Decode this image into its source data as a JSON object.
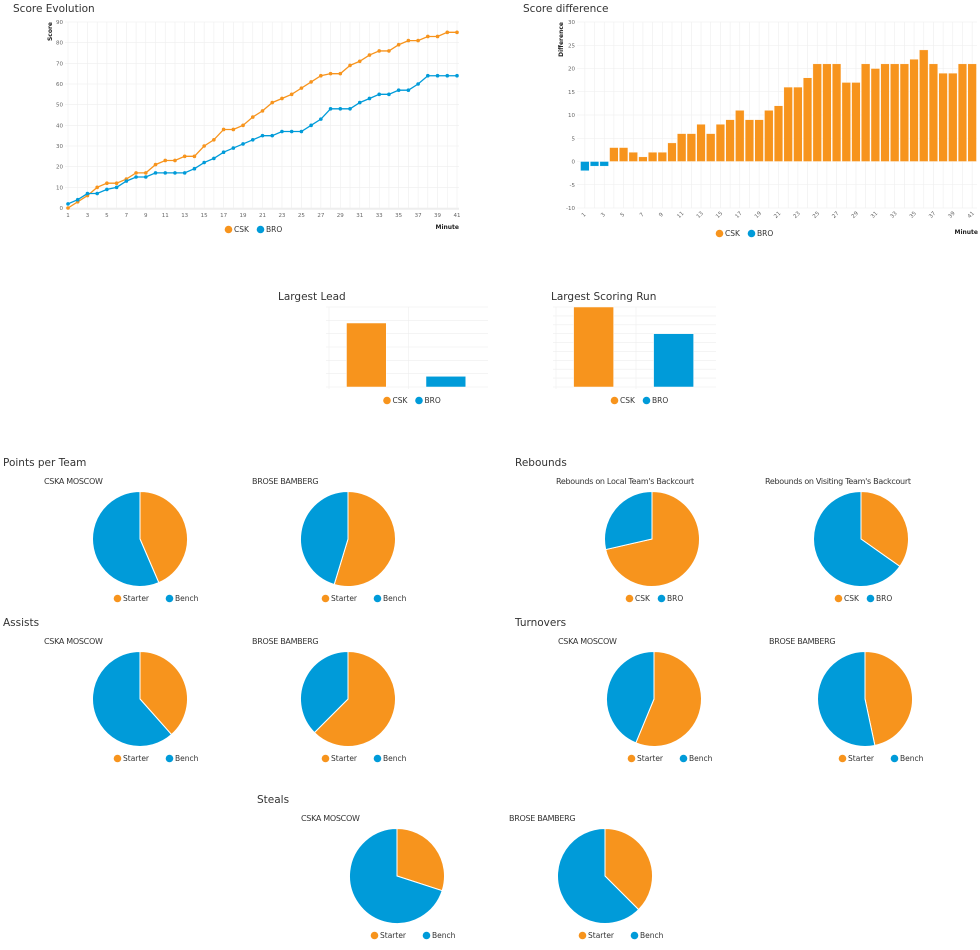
{
  "colors": {
    "orange": "#f7941d",
    "blue": "#009bd9",
    "grid": "#eeeeee"
  },
  "sections": {
    "points": "Points per Team",
    "rebounds": "Rebounds",
    "assists": "Assists",
    "turnovers": "Turnovers",
    "steals": "Steals"
  },
  "chart_data": [
    {
      "id": "score-evolution",
      "type": "line",
      "title": "Score Evolution",
      "xlabel": "Minute",
      "ylabel": "Score",
      "ylim": [
        0,
        90
      ],
      "yticks": [
        0,
        10,
        20,
        30,
        40,
        50,
        60,
        70,
        80,
        90
      ],
      "xticks": [
        1,
        3,
        5,
        7,
        9,
        11,
        13,
        15,
        17,
        19,
        21,
        23,
        25,
        27,
        29,
        31,
        33,
        35,
        37,
        39,
        41
      ],
      "grid": true,
      "legend": "bottom",
      "x": [
        1,
        2,
        3,
        4,
        5,
        6,
        7,
        8,
        9,
        10,
        11,
        12,
        13,
        14,
        15,
        16,
        17,
        18,
        19,
        20,
        21,
        22,
        23,
        24,
        25,
        26,
        27,
        28,
        29,
        30,
        31,
        32,
        33,
        34,
        35,
        36,
        37,
        38,
        39,
        40,
        41
      ],
      "series": [
        {
          "name": "CSK",
          "color": "#f7941d",
          "values": [
            0,
            3,
            6,
            10,
            12,
            12,
            14,
            17,
            17,
            21,
            23,
            23,
            25,
            25,
            30,
            33,
            38,
            38,
            40,
            44,
            47,
            51,
            53,
            55,
            58,
            61,
            64,
            65,
            65,
            69,
            71,
            74,
            76,
            76,
            79,
            81,
            81,
            83,
            83,
            85,
            85
          ]
        },
        {
          "name": "BRO",
          "color": "#009bd9",
          "values": [
            2,
            4,
            7,
            7,
            9,
            10,
            13,
            15,
            15,
            17,
            17,
            17,
            17,
            19,
            22,
            24,
            27,
            29,
            31,
            33,
            35,
            35,
            37,
            37,
            37,
            40,
            43,
            48,
            48,
            48,
            51,
            53,
            55,
            55,
            57,
            57,
            60,
            64,
            64,
            64,
            64
          ]
        }
      ]
    },
    {
      "id": "score-difference",
      "type": "bar",
      "title": "Score difference",
      "xlabel": "Minute",
      "ylabel": "Difference",
      "ylim": [
        -10,
        30
      ],
      "yticks": [
        -10,
        -5,
        0,
        5,
        10,
        15,
        20,
        25,
        30
      ],
      "xticks": [
        1,
        3,
        5,
        7,
        9,
        11,
        13,
        15,
        17,
        19,
        21,
        23,
        25,
        27,
        29,
        31,
        33,
        35,
        37,
        39,
        41
      ],
      "grid": true,
      "legend": "bottom",
      "legend_entries": [
        {
          "name": "CSK",
          "color": "#f7941d"
        },
        {
          "name": "BRO",
          "color": "#009bd9"
        }
      ],
      "x": [
        1,
        2,
        3,
        4,
        5,
        6,
        7,
        8,
        9,
        10,
        11,
        12,
        13,
        14,
        15,
        16,
        17,
        18,
        19,
        20,
        21,
        22,
        23,
        24,
        25,
        26,
        27,
        28,
        29,
        30,
        31,
        32,
        33,
        34,
        35,
        36,
        37,
        38,
        39,
        40,
        41
      ],
      "values": [
        -2,
        -1,
        -1,
        3,
        3,
        2,
        1,
        2,
        2,
        4,
        6,
        6,
        8,
        6,
        8,
        9,
        11,
        9,
        9,
        11,
        12,
        16,
        16,
        18,
        21,
        21,
        21,
        17,
        17,
        21,
        20,
        21,
        21,
        21,
        22,
        24,
        21,
        19,
        19,
        21,
        21
      ]
    },
    {
      "id": "largest-lead",
      "type": "bar",
      "title": "Largest Lead",
      "ylim": [
        0,
        30
      ],
      "grid": true,
      "legend": "bottom",
      "categories": [
        "CSK",
        "BRO"
      ],
      "colors": [
        "#f7941d",
        "#009bd9"
      ],
      "values": [
        24,
        4
      ]
    },
    {
      "id": "largest-scoring-run",
      "type": "bar",
      "title": "Largest Scoring Run",
      "ylim": [
        0,
        9
      ],
      "grid": true,
      "legend": "bottom",
      "categories": [
        "CSK",
        "BRO"
      ],
      "colors": [
        "#f7941d",
        "#009bd9"
      ],
      "values": [
        9,
        6
      ]
    },
    {
      "id": "points-cska",
      "section": "points",
      "type": "pie",
      "title": "CSKA MOSCOW",
      "categories": [
        "Starter",
        "Bench"
      ],
      "values": [
        37,
        48
      ]
    },
    {
      "id": "points-brose",
      "section": "points",
      "type": "pie",
      "title": "BROSE BAMBERG",
      "categories": [
        "Starter",
        "Bench"
      ],
      "values": [
        35,
        29
      ]
    },
    {
      "id": "rebounds-local",
      "section": "rebounds",
      "type": "pie",
      "title": "Rebounds on Local Team's Backcourt",
      "categories": [
        "CSK",
        "BRO"
      ],
      "values": [
        25,
        10
      ]
    },
    {
      "id": "rebounds-visiting",
      "section": "rebounds",
      "type": "pie",
      "title": "Rebounds on Visiting Team's Backcourt",
      "categories": [
        "CSK",
        "BRO"
      ],
      "values": [
        8,
        15
      ]
    },
    {
      "id": "assists-cska",
      "section": "assists",
      "type": "pie",
      "title": "CSKA MOSCOW",
      "categories": [
        "Starter",
        "Bench"
      ],
      "values": [
        5,
        8
      ]
    },
    {
      "id": "assists-brose",
      "section": "assists",
      "type": "pie",
      "title": "BROSE BAMBERG",
      "categories": [
        "Starter",
        "Bench"
      ],
      "values": [
        10,
        6
      ]
    },
    {
      "id": "turnovers-cska",
      "section": "turnovers",
      "type": "pie",
      "title": "CSKA MOSCOW",
      "categories": [
        "Starter",
        "Bench"
      ],
      "values": [
        9,
        7
      ]
    },
    {
      "id": "turnovers-brose",
      "section": "turnovers",
      "type": "pie",
      "title": "BROSE BAMBERG",
      "categories": [
        "Starter",
        "Bench"
      ],
      "values": [
        7,
        8
      ]
    },
    {
      "id": "steals-cska",
      "section": "steals",
      "type": "pie",
      "title": "CSKA MOSCOW",
      "categories": [
        "Starter",
        "Bench"
      ],
      "values": [
        3,
        7
      ]
    },
    {
      "id": "steals-brose",
      "section": "steals",
      "type": "pie",
      "title": "BROSE BAMBERG",
      "categories": [
        "Starter",
        "Bench"
      ],
      "values": [
        3,
        5
      ]
    }
  ]
}
